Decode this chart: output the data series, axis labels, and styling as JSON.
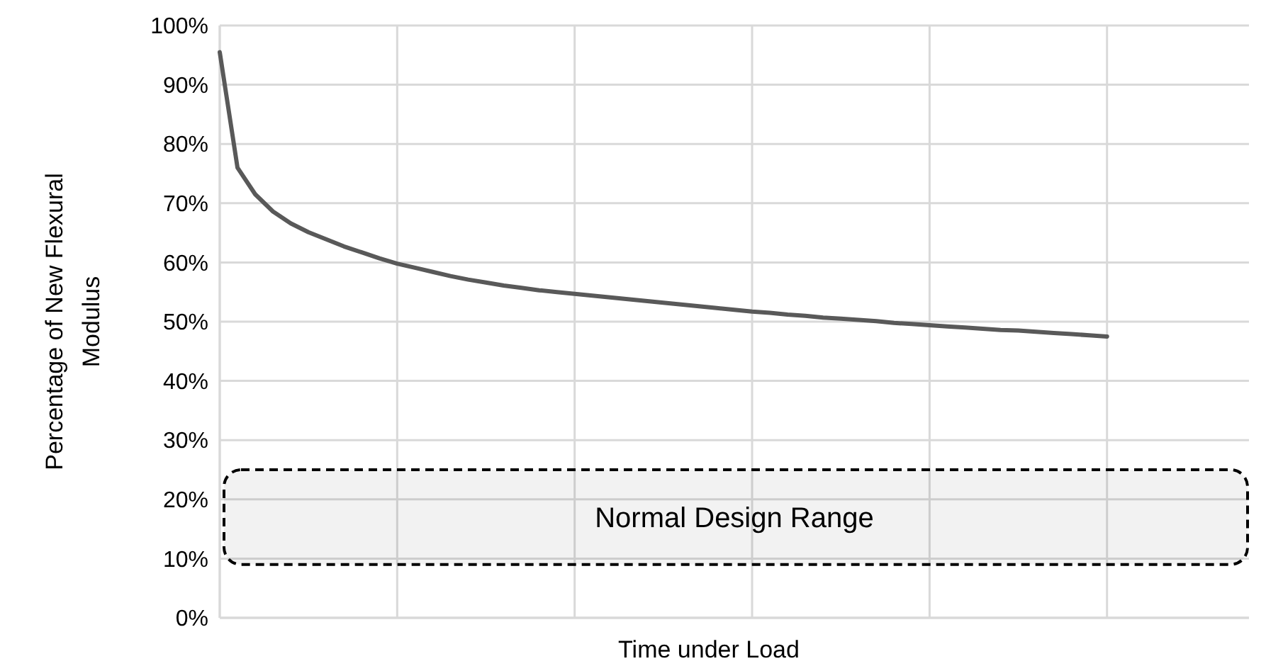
{
  "chart_data": {
    "type": "line",
    "xlabel": "Time under Load",
    "ylabel": "Percentage of New Flexural Modulus",
    "categories": [
      null,
      null,
      null,
      null,
      null,
      null,
      null,
      null,
      null,
      null,
      null,
      null,
      null,
      null,
      null,
      null,
      null,
      null,
      null,
      null,
      null,
      null,
      null,
      null,
      null,
      null,
      null,
      null,
      null,
      null,
      null,
      null,
      null,
      null,
      null,
      null,
      null,
      null,
      null,
      null,
      null,
      null,
      null,
      null,
      null,
      null,
      null,
      null,
      null,
      null,
      null,
      null,
      null,
      null,
      null,
      null,
      null,
      null,
      null
    ],
    "series": [
      {
        "color": "#595959",
        "values": [
          95.5,
          76.0,
          71.5,
          68.6,
          66.6,
          65.1,
          63.9,
          62.7,
          61.7,
          60.7,
          59.8,
          59.1,
          58.4,
          57.7,
          57.1,
          56.6,
          56.1,
          55.7,
          55.3,
          55.0,
          54.7,
          54.4,
          54.1,
          53.8,
          53.5,
          53.2,
          52.9,
          52.6,
          52.3,
          52.0,
          51.7,
          51.5,
          51.2,
          51.0,
          50.7,
          50.5,
          50.3,
          50.1,
          49.8,
          49.6,
          49.4,
          49.2,
          49.0,
          48.8,
          48.6,
          48.5,
          48.3,
          48.1,
          47.9,
          47.7,
          47.5,
          null,
          null,
          null,
          null,
          null,
          null,
          null,
          null
        ]
      }
    ],
    "ylim": [
      0,
      100
    ],
    "yticks": [
      {
        "value": 0,
        "label": "0%"
      },
      {
        "value": 10,
        "label": "10%"
      },
      {
        "value": 20,
        "label": "20%"
      },
      {
        "value": 30,
        "label": "30%"
      },
      {
        "value": 40,
        "label": "40%"
      },
      {
        "value": 50,
        "label": "50%"
      },
      {
        "value": 60,
        "label": "60%"
      },
      {
        "value": 70,
        "label": "70%"
      },
      {
        "value": 80,
        "label": "80%"
      },
      {
        "value": 90,
        "label": "90%"
      },
      {
        "value": 100,
        "label": "100%"
      }
    ],
    "grid": true,
    "line_style": "solid",
    "marker": "none",
    "bands": [
      {
        "axis": "y",
        "from": 9,
        "to": 25,
        "label": "Normal Design Range",
        "color": "#000000"
      }
    ]
  }
}
